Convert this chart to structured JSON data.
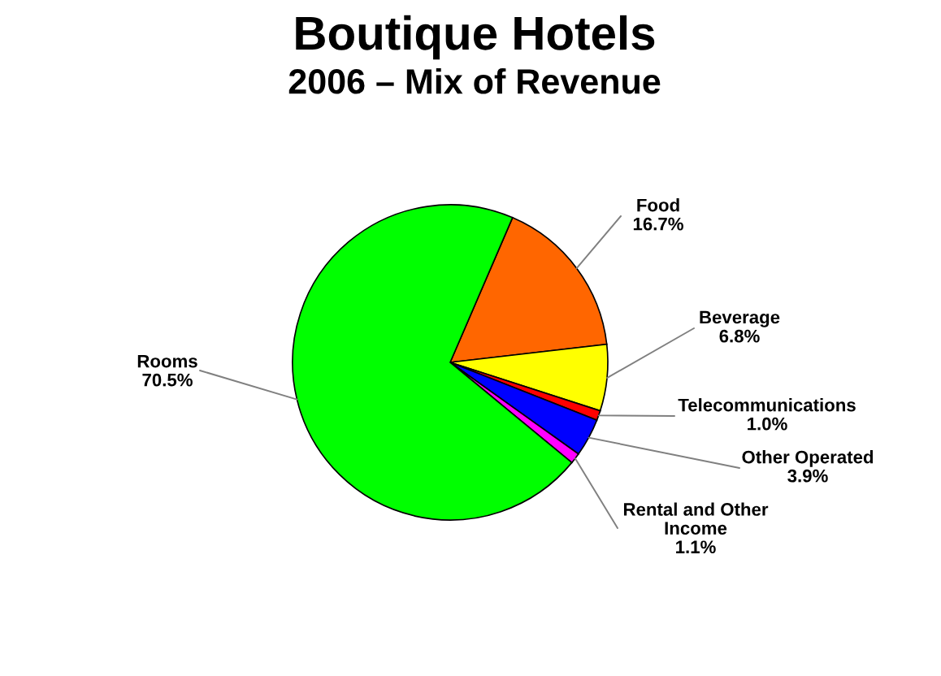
{
  "chart_data": {
    "type": "pie",
    "title": "Boutique Hotels",
    "subtitle": "2006 – Mix of Revenue",
    "categories": [
      "Food",
      "Beverage",
      "Telecommunications",
      "Other Operated",
      "Rental and Other\nIncome",
      "Rooms"
    ],
    "values": [
      16.7,
      6.8,
      1.0,
      3.9,
      1.1,
      70.5
    ],
    "value_labels": [
      "16.7%",
      "6.8%",
      "1.0%",
      "3.9%",
      "1.1%",
      "70.5%"
    ],
    "colors": [
      "#ff6600",
      "#ffff00",
      "#ff0000",
      "#0000ff",
      "#ff00ff",
      "#00ff00"
    ],
    "legend": false
  }
}
